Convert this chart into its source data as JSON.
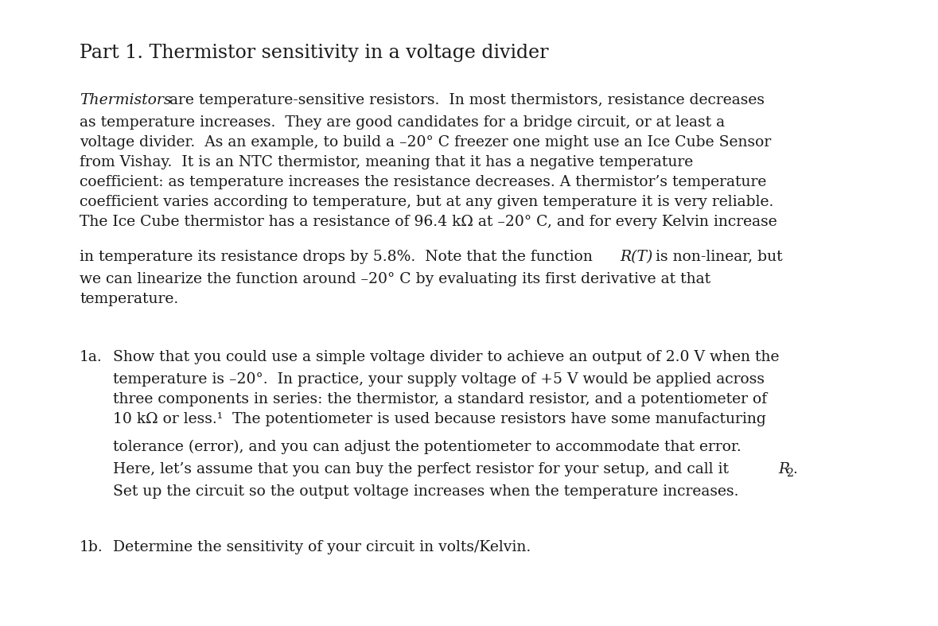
{
  "title": "Part 1. Thermistor sensitivity in a voltage divider",
  "bg_color": "#ffffff",
  "text_color": "#1a1a1a",
  "para1_line1_italic": "Thermistors",
  "para1_line1_rest": " are temperature-sensitive resistors.  In most thermistors, resistance decreases",
  "para1_lines_2_to_7": "as temperature increases.  They are good candidates for a bridge circuit, or at least a\nvoltage divider.  As an example, to build a –20° C freezer one might use an Ice Cube Sensor\nfrom Vishay.  It is an NTC thermistor, meaning that it has a negative temperature\ncoefficient: as temperature increases the resistance decreases. A thermistor’s temperature\ncoefficient varies according to temperature, but at any given temperature it is very reliable.\nThe Ice Cube thermistor has a resistance of 96.4 kΩ at –20° C, and for every Kelvin increase",
  "para1_line8_pre": "in temperature its resistance drops by 5.8%.  Note that the function ",
  "para1_line8_italic": "R(T)",
  "para1_line8_post": " is non-linear, but",
  "para1_lines_9_10": "we can linearize the function around –20° C by evaluating its first derivative at that\ntemperature.",
  "item1a_label": "1a.",
  "item1a_line1_label_text": "Show that you could use a simple voltage divider to achieve an output of 2.0 V when the",
  "item1a_lines_2_4": "temperature is –20°.  In practice, your supply voltage of +5 V would be applied across\nthree components in series: the thermistor, a standard resistor, and a potentiometer of\n10 kΩ or less.¹  The potentiometer is used because resistors have some manufacturing",
  "item1a_line5": "tolerance (error), and you can adjust the potentiometer to accommodate that error.",
  "item1a_line6_pre": "Here, let’s assume that you can buy the perfect resistor for your setup, and call it ",
  "item1a_line6_italic": "R",
  "item1a_line6_sub": "2",
  "item1a_line6_post": ".",
  "item1a_line7": "Set up the circuit so the output voltage increases when the temperature increases.",
  "item1b_label": "1b.",
  "item1b_text": "Determine the sensitivity of your circuit in volts/Kelvin.",
  "font_size_title": 17,
  "font_size_body": 13.5,
  "fig_width": 11.79,
  "fig_height": 7.87,
  "dpi": 100
}
